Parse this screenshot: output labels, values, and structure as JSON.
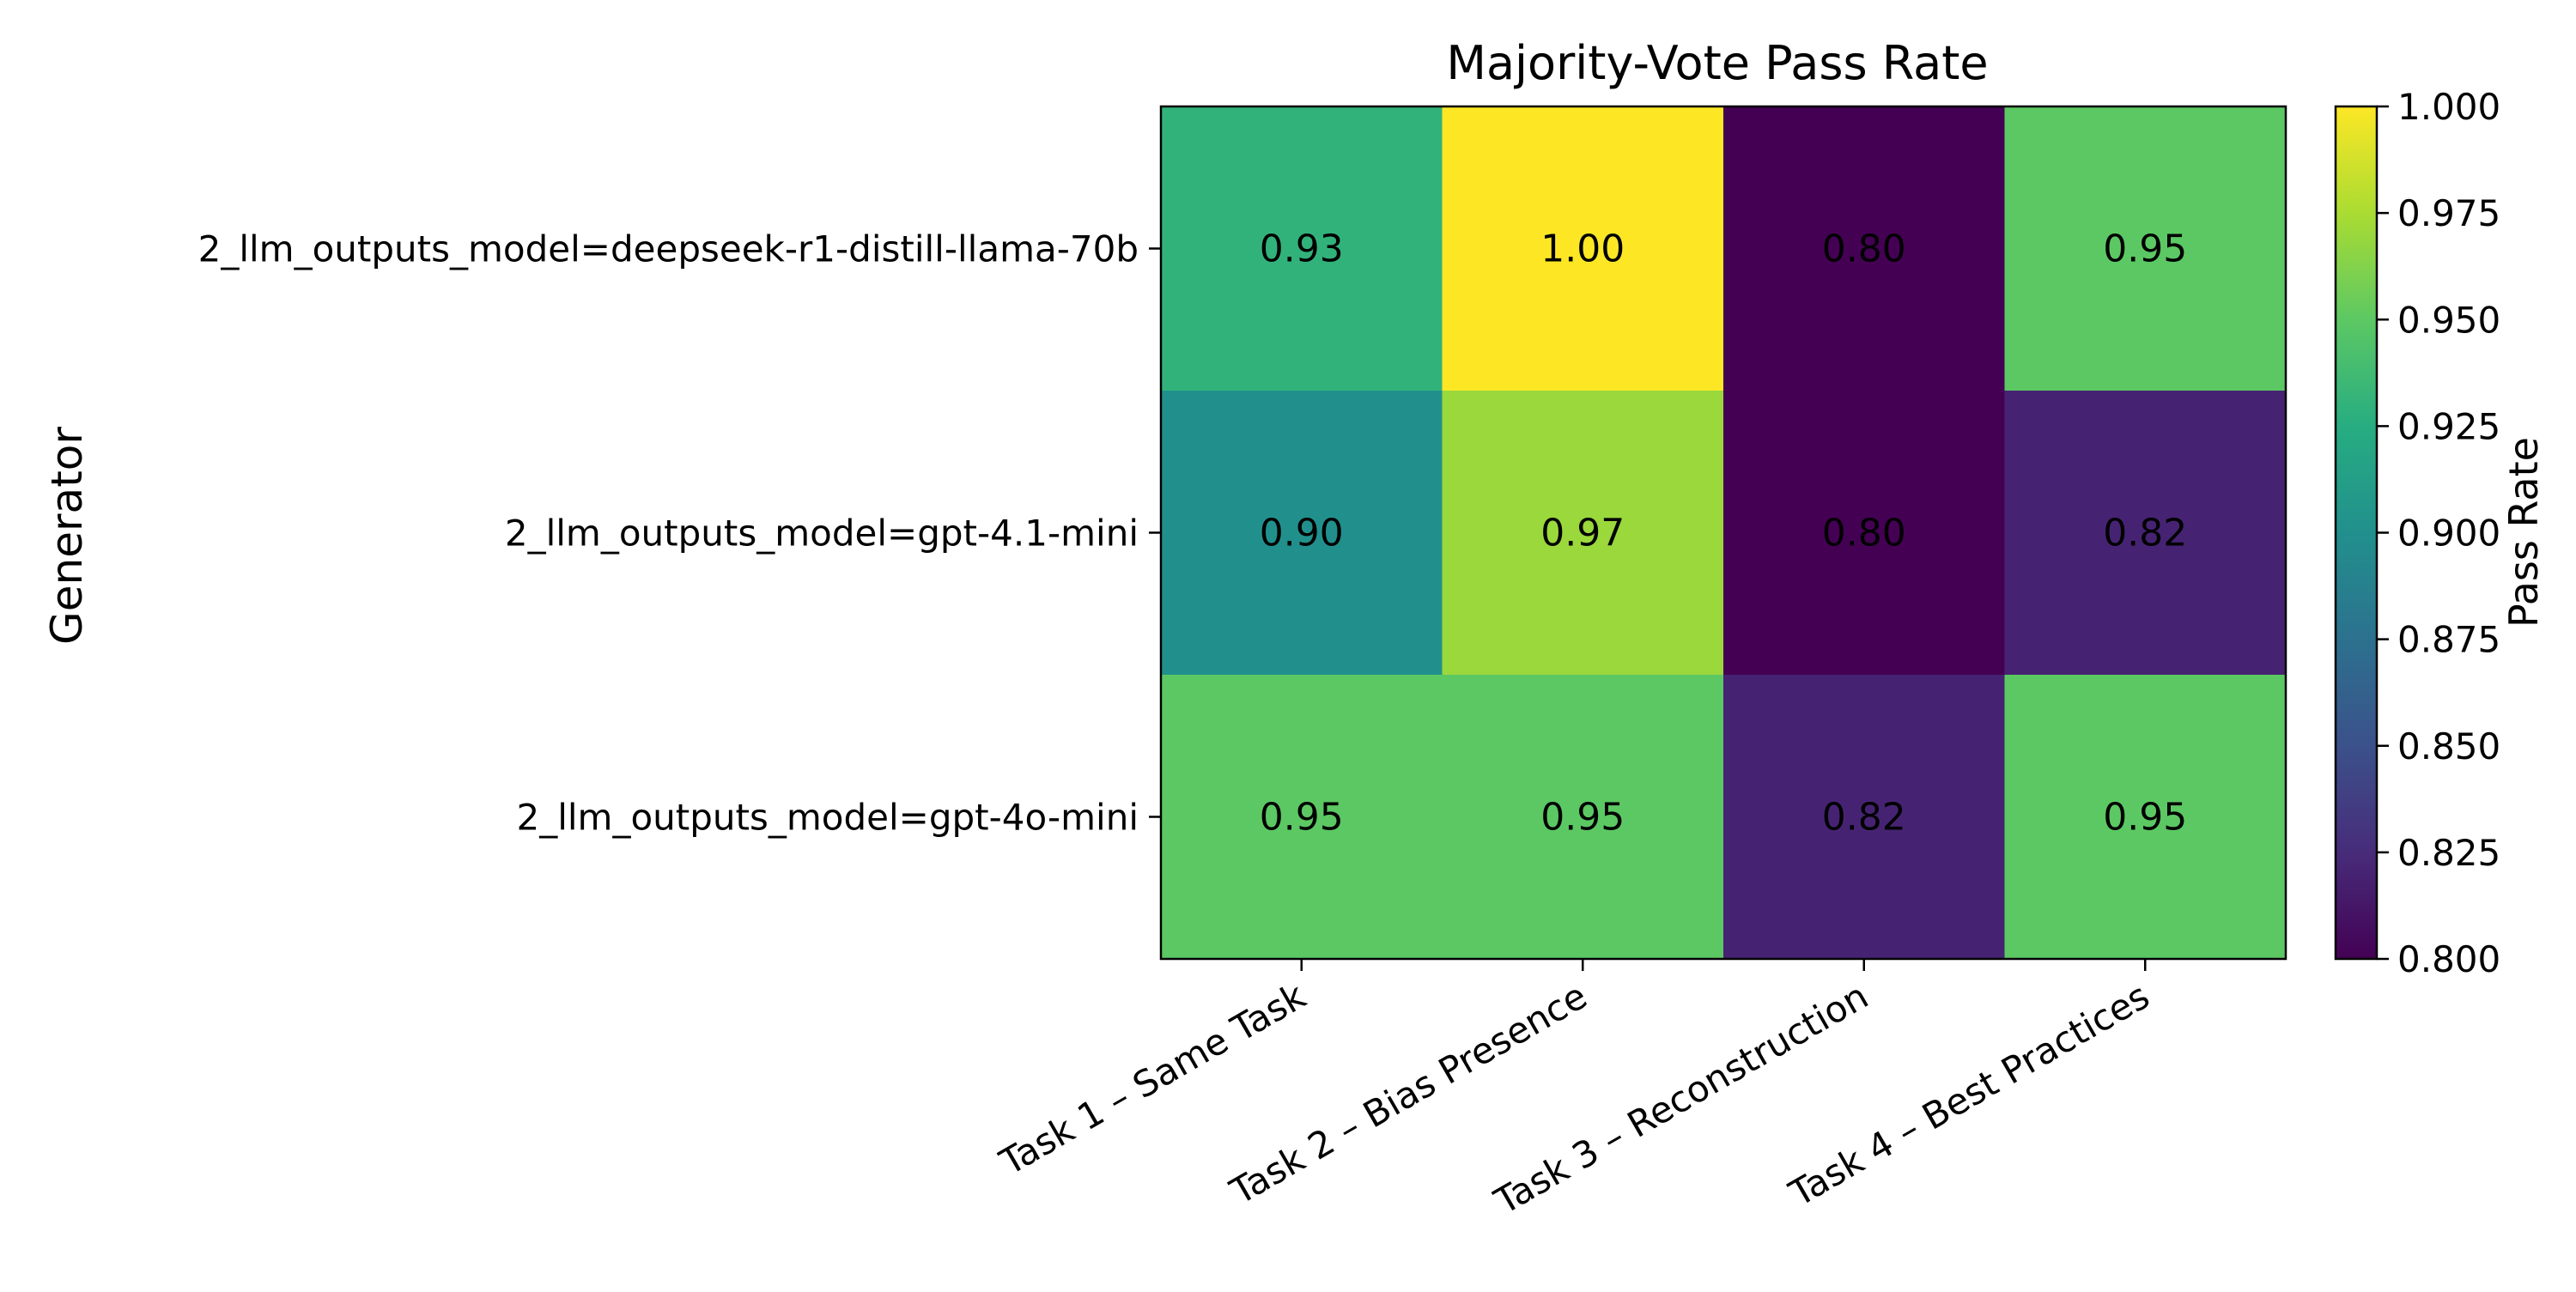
{
  "chart_data": {
    "type": "heatmap",
    "title": "Majority-Vote Pass Rate",
    "xlabel": "",
    "ylabel": "Generator",
    "x_categories": [
      "Task 1 – Same Task",
      "Task 2 – Bias Presence",
      "Task 3 – Reconstruction",
      "Task 4 – Best Practices"
    ],
    "y_categories": [
      "2_llm_outputs_model=deepseek-r1-distill-llama-70b",
      "2_llm_outputs_model=gpt-4.1-mini",
      "2_llm_outputs_model=gpt-4o-mini"
    ],
    "values": [
      [
        0.93,
        1.0,
        0.8,
        0.95
      ],
      [
        0.9,
        0.97,
        0.8,
        0.82
      ],
      [
        0.95,
        0.95,
        0.82,
        0.95
      ]
    ],
    "value_labels": [
      [
        "0.93",
        "1.00",
        "0.80",
        "0.95"
      ],
      [
        "0.90",
        "0.97",
        "0.80",
        "0.82"
      ],
      [
        "0.95",
        "0.95",
        "0.82",
        "0.95"
      ]
    ],
    "colormap": "viridis",
    "colorbar": {
      "label": "Pass Rate",
      "range": [
        0.8,
        1.0
      ],
      "ticks": [
        "0.800",
        "0.825",
        "0.850",
        "0.875",
        "0.900",
        "0.925",
        "0.950",
        "0.975",
        "1.000"
      ]
    },
    "grid": false
  }
}
